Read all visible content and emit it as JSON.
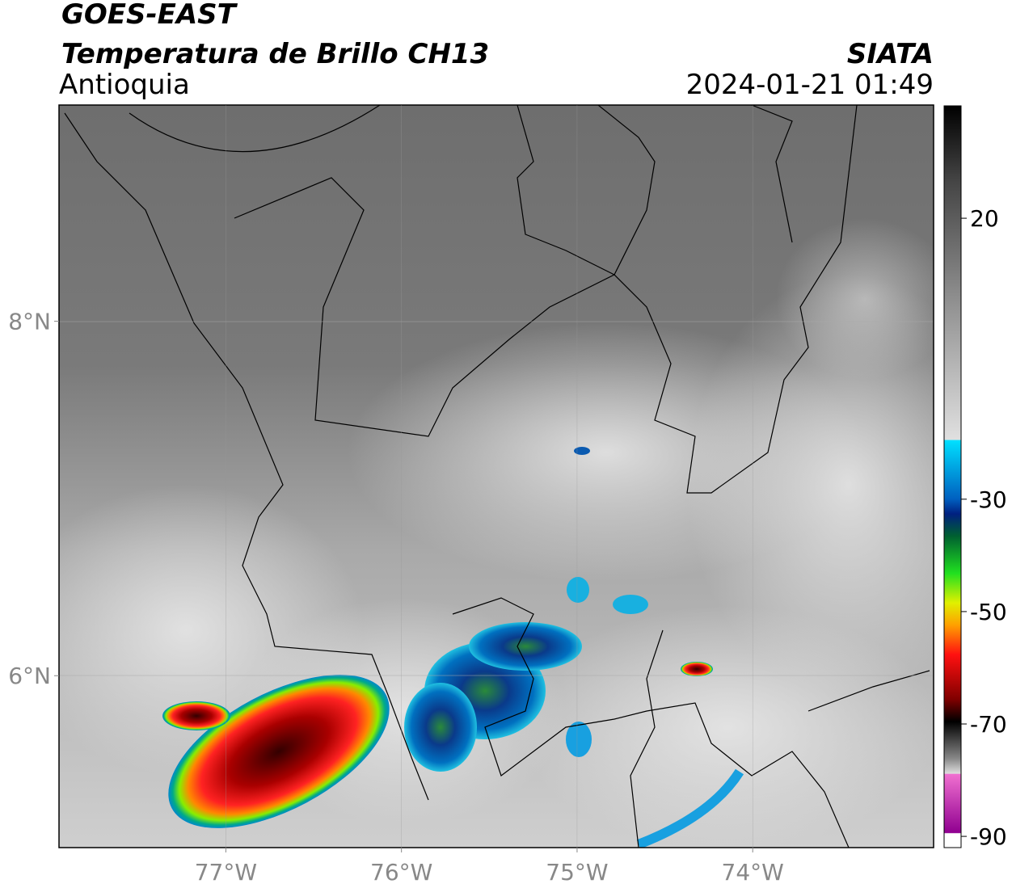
{
  "header": {
    "title": "GOES-EAST",
    "subtitle": "Temperatura de Brillo CH13",
    "region": "Antioquia",
    "source": "SIATA",
    "datetime": "2024-01-21 01:49"
  },
  "map": {
    "xlim": [
      -77.95,
      -72.97
    ],
    "ylim": [
      5.03,
      9.22
    ],
    "xticks": [
      {
        "value": -77,
        "label": "77°W"
      },
      {
        "value": -76,
        "label": "76°W"
      },
      {
        "value": -75,
        "label": "75°W"
      },
      {
        "value": -74,
        "label": "74°W"
      }
    ],
    "yticks": [
      {
        "value": 8,
        "label": "8°N"
      },
      {
        "value": 6,
        "label": "6°N"
      }
    ]
  },
  "colorbar": {
    "clim": [
      -92,
      40
    ],
    "ticks": [
      20,
      -30,
      -50,
      -70,
      -90
    ]
  }
}
